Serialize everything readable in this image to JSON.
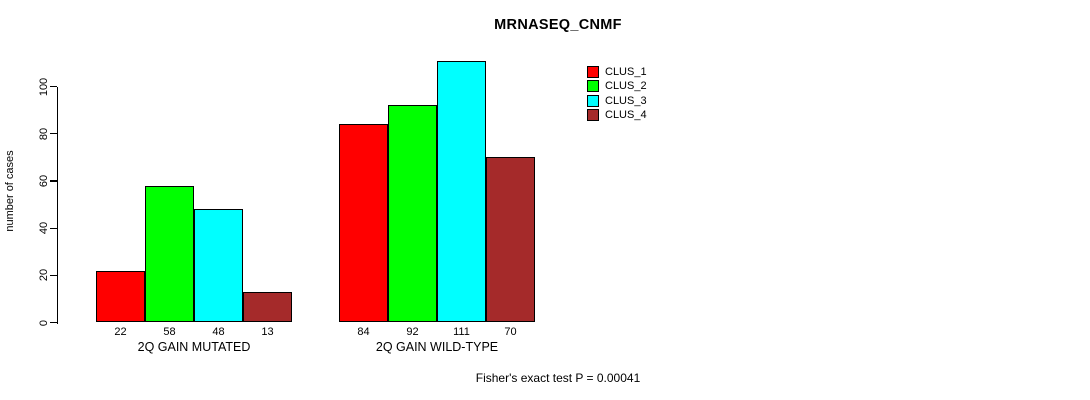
{
  "chart_data": {
    "type": "bar",
    "title": "MRNASEQ_CNMF",
    "ylabel": "number of cases",
    "xlabel": "",
    "categories": [
      "2Q GAIN MUTATED",
      "2Q GAIN WILD-TYPE"
    ],
    "series": [
      {
        "name": "CLUS_1",
        "color": "#FF0000",
        "values": [
          22,
          84
        ]
      },
      {
        "name": "CLUS_2",
        "color": "#00FF00",
        "values": [
          58,
          92
        ]
      },
      {
        "name": "CLUS_3",
        "color": "#00FFFF",
        "values": [
          48,
          111
        ]
      },
      {
        "name": "CLUS_4",
        "color": "#A52A2A",
        "values": [
          13,
          70
        ]
      }
    ],
    "bar_value_labels": [
      [
        22,
        58,
        48,
        13
      ],
      [
        84,
        92,
        111,
        70
      ]
    ],
    "yticks": [
      0,
      20,
      40,
      60,
      80,
      100
    ],
    "ylim": [
      0,
      111
    ],
    "grid": false,
    "legend_position": "top-right",
    "annotation": "Fisher's exact test P = 0.00041",
    "colors": {
      "background": "#FFFFFF",
      "axis": "#000000",
      "bar_border": "#000000",
      "text": "#000000"
    }
  }
}
